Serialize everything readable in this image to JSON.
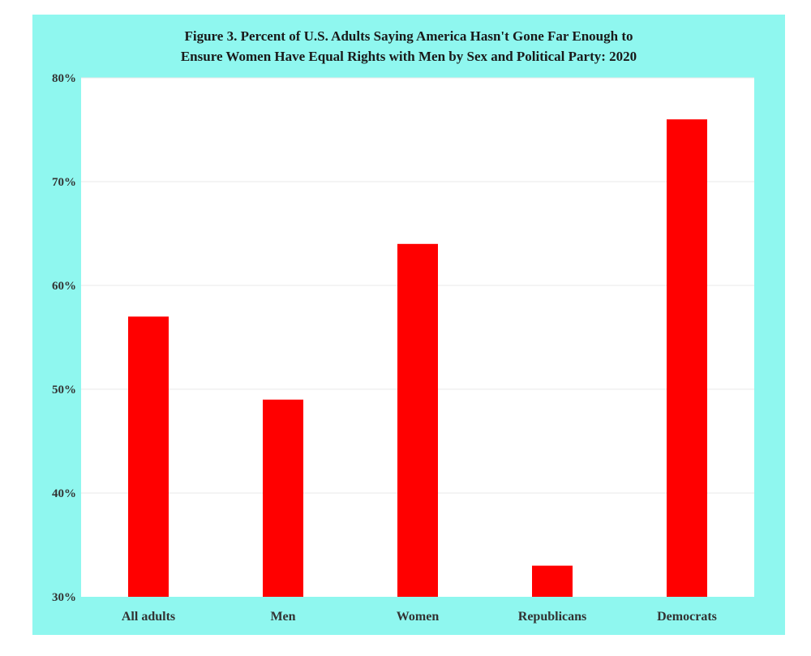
{
  "chart_data": {
    "type": "bar",
    "title_lines": [
      "Figure 3. Percent of U.S. Adults Saying America Hasn't Gone Far Enough to",
      "Ensure Women Have Equal Rights with Men by Sex and Political  Party: 2020"
    ],
    "categories": [
      "All adults",
      "Men",
      "Women",
      "Republicans",
      "Democrats"
    ],
    "values": [
      57,
      49,
      64,
      33,
      76
    ],
    "ylim": [
      30,
      80
    ],
    "yticks": [
      30,
      40,
      50,
      60,
      70,
      80
    ],
    "ytick_labels": [
      "30%",
      "40%",
      "50%",
      "60%",
      "70%",
      "80%"
    ],
    "xlabel": "",
    "ylabel": "",
    "grid": true,
    "legend": "none",
    "colors": {
      "bar": "#ff0000",
      "background": "#8ff7ef",
      "plot_area": "#ffffff",
      "grid": "#e8e8e8"
    }
  }
}
